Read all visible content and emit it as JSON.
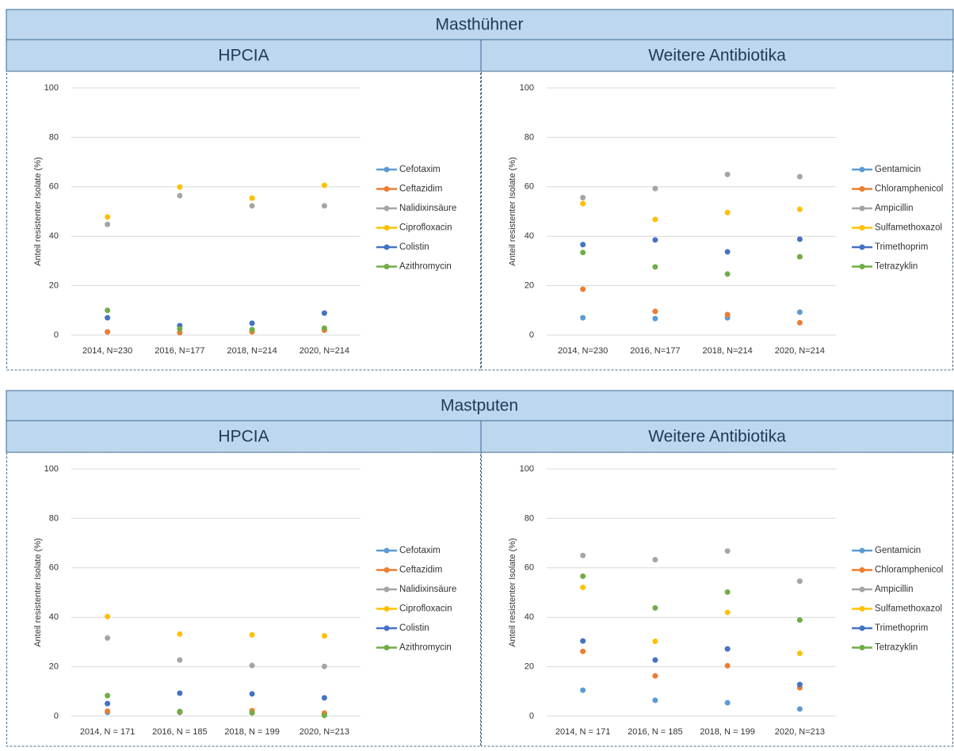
{
  "sections": [
    {
      "title": "Masthühner"
    },
    {
      "title": "Mastputen"
    }
  ],
  "chart_data": [
    {
      "type": "line",
      "title": "HPCIA",
      "y_label": "Anteil resistenter Isolate (%)",
      "categories": [
        "2014, N=230",
        "2016, N=177",
        "2018, N=214",
        "2020, N=214"
      ],
      "ylim": [
        0,
        100
      ],
      "yticks": [
        0,
        20,
        40,
        60,
        80,
        100
      ],
      "grid": true,
      "series": [
        {
          "name": "Cefotaxim",
          "color": "#5b9bd5",
          "values": [
            1.3,
            1,
            1.5,
            2
          ]
        },
        {
          "name": "Ceftazidim",
          "color": "#ed7d31",
          "values": [
            1.3,
            1,
            1.3,
            2
          ]
        },
        {
          "name": "Nalidixinsäure",
          "color": "#a5a5a5",
          "values": [
            44.8,
            56.4,
            52.3,
            52.3
          ]
        },
        {
          "name": "Ciprofloxacin",
          "color": "#ffc000",
          "values": [
            47.8,
            59.9,
            55.4,
            60.6
          ]
        },
        {
          "name": "Colistin",
          "color": "#4472c4",
          "values": [
            7,
            3.8,
            4.8,
            8.9
          ]
        },
        {
          "name": "Azithromycin",
          "color": "#70ad47",
          "values": [
            10,
            2.5,
            2.2,
            2.8
          ]
        }
      ]
    },
    {
      "type": "line",
      "title": "Weitere Antibiotika",
      "y_label": "Anteil resistenter Isolate (%)",
      "categories": [
        "2014, N=230",
        "2016, N=177",
        "2018, N=214",
        "2020, N=214"
      ],
      "ylim": [
        0,
        100
      ],
      "yticks": [
        0,
        20,
        40,
        60,
        80,
        100
      ],
      "grid": true,
      "series": [
        {
          "name": "Gentamicin",
          "color": "#5b9bd5",
          "values": [
            7,
            6.7,
            7,
            9.3
          ]
        },
        {
          "name": "Chloramphenicol",
          "color": "#ed7d31",
          "values": [
            18.6,
            9.6,
            8.3,
            5
          ]
        },
        {
          "name": "Ampicillin",
          "color": "#a5a5a5",
          "values": [
            55.6,
            59.3,
            65,
            64.1
          ]
        },
        {
          "name": "Sulfamethoxazol",
          "color": "#ffc000",
          "values": [
            53.2,
            46.8,
            49.6,
            50.9
          ]
        },
        {
          "name": "Trimethoprim",
          "color": "#4472c4",
          "values": [
            36.6,
            38.5,
            33.7,
            38.8
          ]
        },
        {
          "name": "Tetrazyklin",
          "color": "#70ad47",
          "values": [
            33.4,
            27.6,
            24.7,
            31.7
          ]
        }
      ]
    },
    {
      "type": "line",
      "title": "HPCIA",
      "y_label": "Anteil resistenter Isolate (%)",
      "categories": [
        "2014, N = 171",
        "2016, N = 185",
        "2018, N = 199",
        "2020, N=213"
      ],
      "ylim": [
        0,
        100
      ],
      "yticks": [
        0,
        20,
        40,
        60,
        80,
        100
      ],
      "grid": true,
      "series": [
        {
          "name": "Cefotaxim",
          "color": "#5b9bd5",
          "values": [
            1.5,
            1.5,
            2,
            1
          ]
        },
        {
          "name": "Ceftazidim",
          "color": "#ed7d31",
          "values": [
            2,
            1.7,
            2.2,
            1.2
          ]
        },
        {
          "name": "Nalidixinsäure",
          "color": "#a5a5a5",
          "values": [
            31.6,
            22.7,
            20.5,
            20.1
          ]
        },
        {
          "name": "Ciprofloxacin",
          "color": "#ffc000",
          "values": [
            40.3,
            33.2,
            32.9,
            32.5
          ]
        },
        {
          "name": "Colistin",
          "color": "#4472c4",
          "values": [
            5.1,
            9.3,
            9,
            7.4
          ]
        },
        {
          "name": "Azithromycin",
          "color": "#70ad47",
          "values": [
            8.3,
            1.9,
            1.3,
            0.3
          ]
        }
      ]
    },
    {
      "type": "line",
      "title": "Weitere Antibiotika",
      "y_label": "Anteil resistenter Isolate (%)",
      "categories": [
        "2014, N = 171",
        "2016, N = 185",
        "2018, N = 199",
        "2020, N=213"
      ],
      "ylim": [
        0,
        100
      ],
      "yticks": [
        0,
        20,
        40,
        60,
        80,
        100
      ],
      "grid": true,
      "series": [
        {
          "name": "Gentamicin",
          "color": "#5b9bd5",
          "values": [
            10.5,
            6.4,
            5.4,
            2.9
          ]
        },
        {
          "name": "Chloramphenicol",
          "color": "#ed7d31",
          "values": [
            26.2,
            16.3,
            20.4,
            11.5
          ]
        },
        {
          "name": "Ampicillin",
          "color": "#a5a5a5",
          "values": [
            65,
            63.3,
            66.8,
            54.6
          ]
        },
        {
          "name": "Sulfamethoxazol",
          "color": "#ffc000",
          "values": [
            52.1,
            30.3,
            42,
            25.4
          ]
        },
        {
          "name": "Trimethoprim",
          "color": "#4472c4",
          "values": [
            30.4,
            22.7,
            27.2,
            12.8
          ]
        },
        {
          "name": "Tetrazyklin",
          "color": "#70ad47",
          "values": [
            56.6,
            43.8,
            50.2,
            38.9
          ]
        }
      ]
    }
  ]
}
